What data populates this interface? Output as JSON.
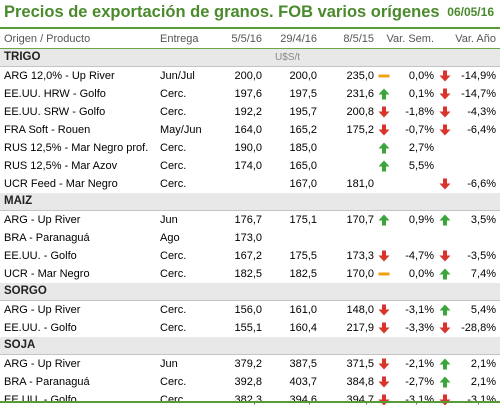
{
  "title": "Precios de exportación de granos. FOB varios orígenes",
  "date": "06/05/16",
  "colors": {
    "accent": "#4a8a2c",
    "up": "#3aa53a",
    "down": "#d9342b",
    "flat": "#f2a20c"
  },
  "headers": {
    "product": "Origen / Producto",
    "delivery": "Entrega",
    "c1": "5/5/16",
    "c2": "29/4/16",
    "c3": "8/5/15",
    "var_week": "Var. Sem.",
    "var_year": "Var. Año"
  },
  "unit": "U$S/t",
  "sections": [
    {
      "name": "TRIGO",
      "rows": [
        {
          "product": "ARG 12,0% - Up River",
          "delivery": "Jun/Jul",
          "c1": "200,0",
          "c2": "200,0",
          "c3": "235,0",
          "icon3": "flat",
          "vs": "0,0%",
          "iconw": "down",
          "va": "-14,9%"
        },
        {
          "product": "EE.UU. HRW - Golfo",
          "delivery": "Cerc.",
          "c1": "197,6",
          "c2": "197,5",
          "c3": "231,6",
          "icon3": "up",
          "vs": "0,1%",
          "iconw": "down",
          "va": "-14,7%"
        },
        {
          "product": "EE.UU. SRW - Golfo",
          "delivery": "Cerc.",
          "c1": "192,2",
          "c2": "195,7",
          "c3": "200,8",
          "icon3": "down",
          "vs": "-1,8%",
          "iconw": "down",
          "va": "-4,3%"
        },
        {
          "product": "FRA Soft - Rouen",
          "delivery": "May/Jun",
          "c1": "164,0",
          "c2": "165,2",
          "c3": "175,2",
          "icon3": "down",
          "vs": "-0,7%",
          "iconw": "down",
          "va": "-6,4%"
        },
        {
          "product": "RUS 12,5% - Mar Negro prof.",
          "delivery": "Cerc.",
          "c1": "190,0",
          "c2": "185,0",
          "c3": "",
          "icon3": "up",
          "vs": "2,7%",
          "iconw": "",
          "va": ""
        },
        {
          "product": "RUS 12,5% - Mar Azov",
          "delivery": "Cerc.",
          "c1": "174,0",
          "c2": "165,0",
          "c3": "",
          "icon3": "up",
          "vs": "5,5%",
          "iconw": "",
          "va": ""
        },
        {
          "product": "UCR Feed - Mar Negro",
          "delivery": "Cerc.",
          "c1": "",
          "c2": "167,0",
          "c3": "181,0",
          "icon3": "",
          "vs": "",
          "iconw": "down",
          "va": "-6,6%"
        }
      ]
    },
    {
      "name": "MAIZ",
      "rows": [
        {
          "product": "ARG - Up River",
          "delivery": "Jun",
          "c1": "176,7",
          "c2": "175,1",
          "c3": "170,7",
          "icon3": "up",
          "vs": "0,9%",
          "iconw": "up",
          "va": "3,5%"
        },
        {
          "product": "BRA - Paranaguá",
          "delivery": "Ago",
          "c1": "173,0",
          "c2": "",
          "c3": "",
          "icon3": "",
          "vs": "",
          "iconw": "",
          "va": ""
        },
        {
          "product": "EE.UU. - Golfo",
          "delivery": "Cerc.",
          "c1": "167,2",
          "c2": "175,5",
          "c3": "173,3",
          "icon3": "down",
          "vs": "-4,7%",
          "iconw": "down",
          "va": "-3,5%"
        },
        {
          "product": "UCR - Mar Negro",
          "delivery": "Cerc.",
          "c1": "182,5",
          "c2": "182,5",
          "c3": "170,0",
          "icon3": "flat",
          "vs": "0,0%",
          "iconw": "up",
          "va": "7,4%"
        }
      ]
    },
    {
      "name": "SORGO",
      "rows": [
        {
          "product": "ARG - Up River",
          "delivery": "Cerc.",
          "c1": "156,0",
          "c2": "161,0",
          "c3": "148,0",
          "icon3": "down",
          "vs": "-3,1%",
          "iconw": "up",
          "va": "5,4%"
        },
        {
          "product": "EE.UU. - Golfo",
          "delivery": "Cerc.",
          "c1": "155,1",
          "c2": "160,4",
          "c3": "217,9",
          "icon3": "down",
          "vs": "-3,3%",
          "iconw": "down",
          "va": "-28,8%"
        }
      ]
    },
    {
      "name": "SOJA",
      "rows": [
        {
          "product": "ARG - Up River",
          "delivery": "Jun",
          "c1": "379,2",
          "c2": "387,5",
          "c3": "371,5",
          "icon3": "down",
          "vs": "-2,1%",
          "iconw": "up",
          "va": "2,1%"
        },
        {
          "product": "BRA - Paranaguá",
          "delivery": "Cerc.",
          "c1": "392,8",
          "c2": "403,7",
          "c3": "384,8",
          "icon3": "down",
          "vs": "-2,7%",
          "iconw": "up",
          "va": "2,1%"
        },
        {
          "product": "EE.UU. - Golfo",
          "delivery": "Cerc.",
          "c1": "382,3",
          "c2": "394,6",
          "c3": "394,7",
          "icon3": "down",
          "vs": "-3,1%",
          "iconw": "down",
          "va": "-3,1%"
        }
      ]
    }
  ]
}
